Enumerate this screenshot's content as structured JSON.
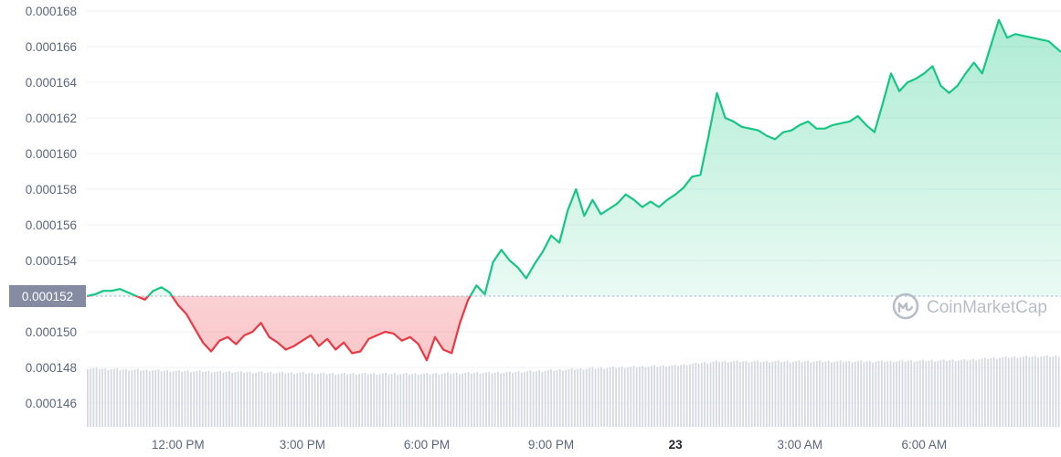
{
  "chart_data": {
    "type": "area",
    "ylim": [
      0.000145,
      0.0001685
    ],
    "y_ticks": [
      "0.000146",
      "0.000148",
      "0.000150",
      "0.000152",
      "0.000154",
      "0.000156",
      "0.000158",
      "0.000160",
      "0.000162",
      "0.000164",
      "0.000166",
      "0.000168"
    ],
    "x_ticks": [
      {
        "label": "12:00 PM",
        "bold": false
      },
      {
        "label": "3:00 PM",
        "bold": false
      },
      {
        "label": "6:00 PM",
        "bold": false
      },
      {
        "label": "9:00 PM",
        "bold": false
      },
      {
        "label": "23",
        "bold": true
      },
      {
        "label": "3:00 AM",
        "bold": false
      },
      {
        "label": "6:00 AM",
        "bold": false
      }
    ],
    "x_tick_hours": [
      12,
      15,
      18,
      21,
      24,
      27,
      30
    ],
    "x_range_hours": [
      9.8,
      33.3
    ],
    "reference_line": {
      "value": 0.000152,
      "label": "0.000152"
    },
    "colors": {
      "up": "#16c784",
      "down": "#ea3943",
      "volume": "#d4d8e1",
      "grid": "#eff2f5",
      "reference_badge": "#858ca2"
    },
    "price_series": [
      [
        9.8,
        0.000152
      ],
      [
        10.0,
        0.0001521
      ],
      [
        10.2,
        0.0001523
      ],
      [
        10.4,
        0.0001523
      ],
      [
        10.6,
        0.0001524
      ],
      [
        10.8,
        0.0001522
      ],
      [
        11.0,
        0.000152
      ],
      [
        11.2,
        0.0001518
      ],
      [
        11.4,
        0.0001523
      ],
      [
        11.6,
        0.0001525
      ],
      [
        11.8,
        0.0001522
      ],
      [
        12.0,
        0.0001515
      ],
      [
        12.2,
        0.000151
      ],
      [
        12.4,
        0.0001502
      ],
      [
        12.6,
        0.0001494
      ],
      [
        12.8,
        0.0001489
      ],
      [
        13.0,
        0.0001495
      ],
      [
        13.2,
        0.0001497
      ],
      [
        13.4,
        0.0001493
      ],
      [
        13.6,
        0.0001498
      ],
      [
        13.8,
        0.00015
      ],
      [
        14.0,
        0.0001505
      ],
      [
        14.2,
        0.0001497
      ],
      [
        14.4,
        0.0001494
      ],
      [
        14.6,
        0.000149
      ],
      [
        14.8,
        0.0001492
      ],
      [
        15.0,
        0.0001495
      ],
      [
        15.2,
        0.0001498
      ],
      [
        15.4,
        0.0001492
      ],
      [
        15.6,
        0.0001496
      ],
      [
        15.8,
        0.000149
      ],
      [
        16.0,
        0.0001494
      ],
      [
        16.2,
        0.0001488
      ],
      [
        16.4,
        0.0001489
      ],
      [
        16.6,
        0.0001496
      ],
      [
        16.8,
        0.0001498
      ],
      [
        17.0,
        0.00015
      ],
      [
        17.2,
        0.0001499
      ],
      [
        17.4,
        0.0001495
      ],
      [
        17.6,
        0.0001497
      ],
      [
        17.8,
        0.0001493
      ],
      [
        18.0,
        0.0001484
      ],
      [
        18.2,
        0.0001497
      ],
      [
        18.4,
        0.000149
      ],
      [
        18.6,
        0.0001488
      ],
      [
        18.8,
        0.0001505
      ],
      [
        19.0,
        0.0001518
      ],
      [
        19.2,
        0.0001526
      ],
      [
        19.4,
        0.0001521
      ],
      [
        19.6,
        0.0001539
      ],
      [
        19.8,
        0.0001546
      ],
      [
        20.0,
        0.000154
      ],
      [
        20.2,
        0.0001536
      ],
      [
        20.4,
        0.000153
      ],
      [
        20.6,
        0.0001538
      ],
      [
        20.8,
        0.0001545
      ],
      [
        21.0,
        0.0001554
      ],
      [
        21.2,
        0.000155
      ],
      [
        21.4,
        0.0001568
      ],
      [
        21.6,
        0.000158
      ],
      [
        21.8,
        0.0001565
      ],
      [
        22.0,
        0.0001574
      ],
      [
        22.2,
        0.0001566
      ],
      [
        22.4,
        0.0001569
      ],
      [
        22.6,
        0.0001572
      ],
      [
        22.8,
        0.0001577
      ],
      [
        23.0,
        0.0001574
      ],
      [
        23.2,
        0.000157
      ],
      [
        23.4,
        0.0001573
      ],
      [
        23.6,
        0.000157
      ],
      [
        23.8,
        0.0001574
      ],
      [
        24.0,
        0.0001577
      ],
      [
        24.2,
        0.0001581
      ],
      [
        24.4,
        0.0001587
      ],
      [
        24.6,
        0.0001588
      ],
      [
        24.8,
        0.000161
      ],
      [
        25.0,
        0.0001634
      ],
      [
        25.2,
        0.000162
      ],
      [
        25.4,
        0.0001618
      ],
      [
        25.6,
        0.0001615
      ],
      [
        25.8,
        0.0001614
      ],
      [
        26.0,
        0.0001613
      ],
      [
        26.2,
        0.000161
      ],
      [
        26.4,
        0.0001608
      ],
      [
        26.6,
        0.0001612
      ],
      [
        26.8,
        0.0001613
      ],
      [
        27.0,
        0.0001616
      ],
      [
        27.2,
        0.0001618
      ],
      [
        27.4,
        0.0001614
      ],
      [
        27.6,
        0.0001614
      ],
      [
        27.8,
        0.0001616
      ],
      [
        28.0,
        0.0001617
      ],
      [
        28.2,
        0.0001618
      ],
      [
        28.4,
        0.0001621
      ],
      [
        28.6,
        0.0001616
      ],
      [
        28.8,
        0.0001612
      ],
      [
        29.0,
        0.0001628
      ],
      [
        29.2,
        0.0001645
      ],
      [
        29.4,
        0.0001635
      ],
      [
        29.6,
        0.000164
      ],
      [
        29.8,
        0.0001642
      ],
      [
        30.0,
        0.0001645
      ],
      [
        30.2,
        0.0001649
      ],
      [
        30.4,
        0.0001638
      ],
      [
        30.6,
        0.0001634
      ],
      [
        30.8,
        0.0001638
      ],
      [
        31.0,
        0.0001645
      ],
      [
        31.2,
        0.0001651
      ],
      [
        31.4,
        0.0001645
      ],
      [
        31.6,
        0.000166
      ],
      [
        31.8,
        0.0001675
      ],
      [
        32.0,
        0.0001665
      ],
      [
        32.2,
        0.0001667
      ],
      [
        32.4,
        0.0001666
      ],
      [
        32.6,
        0.0001665
      ],
      [
        32.8,
        0.0001664
      ],
      [
        33.0,
        0.0001663
      ],
      [
        33.3,
        0.0001657
      ]
    ],
    "volume_series": [
      [
        9.8,
        0.42
      ],
      [
        12.0,
        0.4
      ],
      [
        14.0,
        0.39
      ],
      [
        16.0,
        0.38
      ],
      [
        18.0,
        0.38
      ],
      [
        20.0,
        0.39
      ],
      [
        22.0,
        0.42
      ],
      [
        24.0,
        0.44
      ],
      [
        25.0,
        0.47
      ],
      [
        27.0,
        0.47
      ],
      [
        29.0,
        0.47
      ],
      [
        31.0,
        0.48
      ],
      [
        32.0,
        0.5
      ],
      [
        33.3,
        0.51
      ]
    ]
  },
  "watermark": {
    "text": "CoinMarketCap",
    "icon": "coinmarketcap-logo-icon"
  }
}
